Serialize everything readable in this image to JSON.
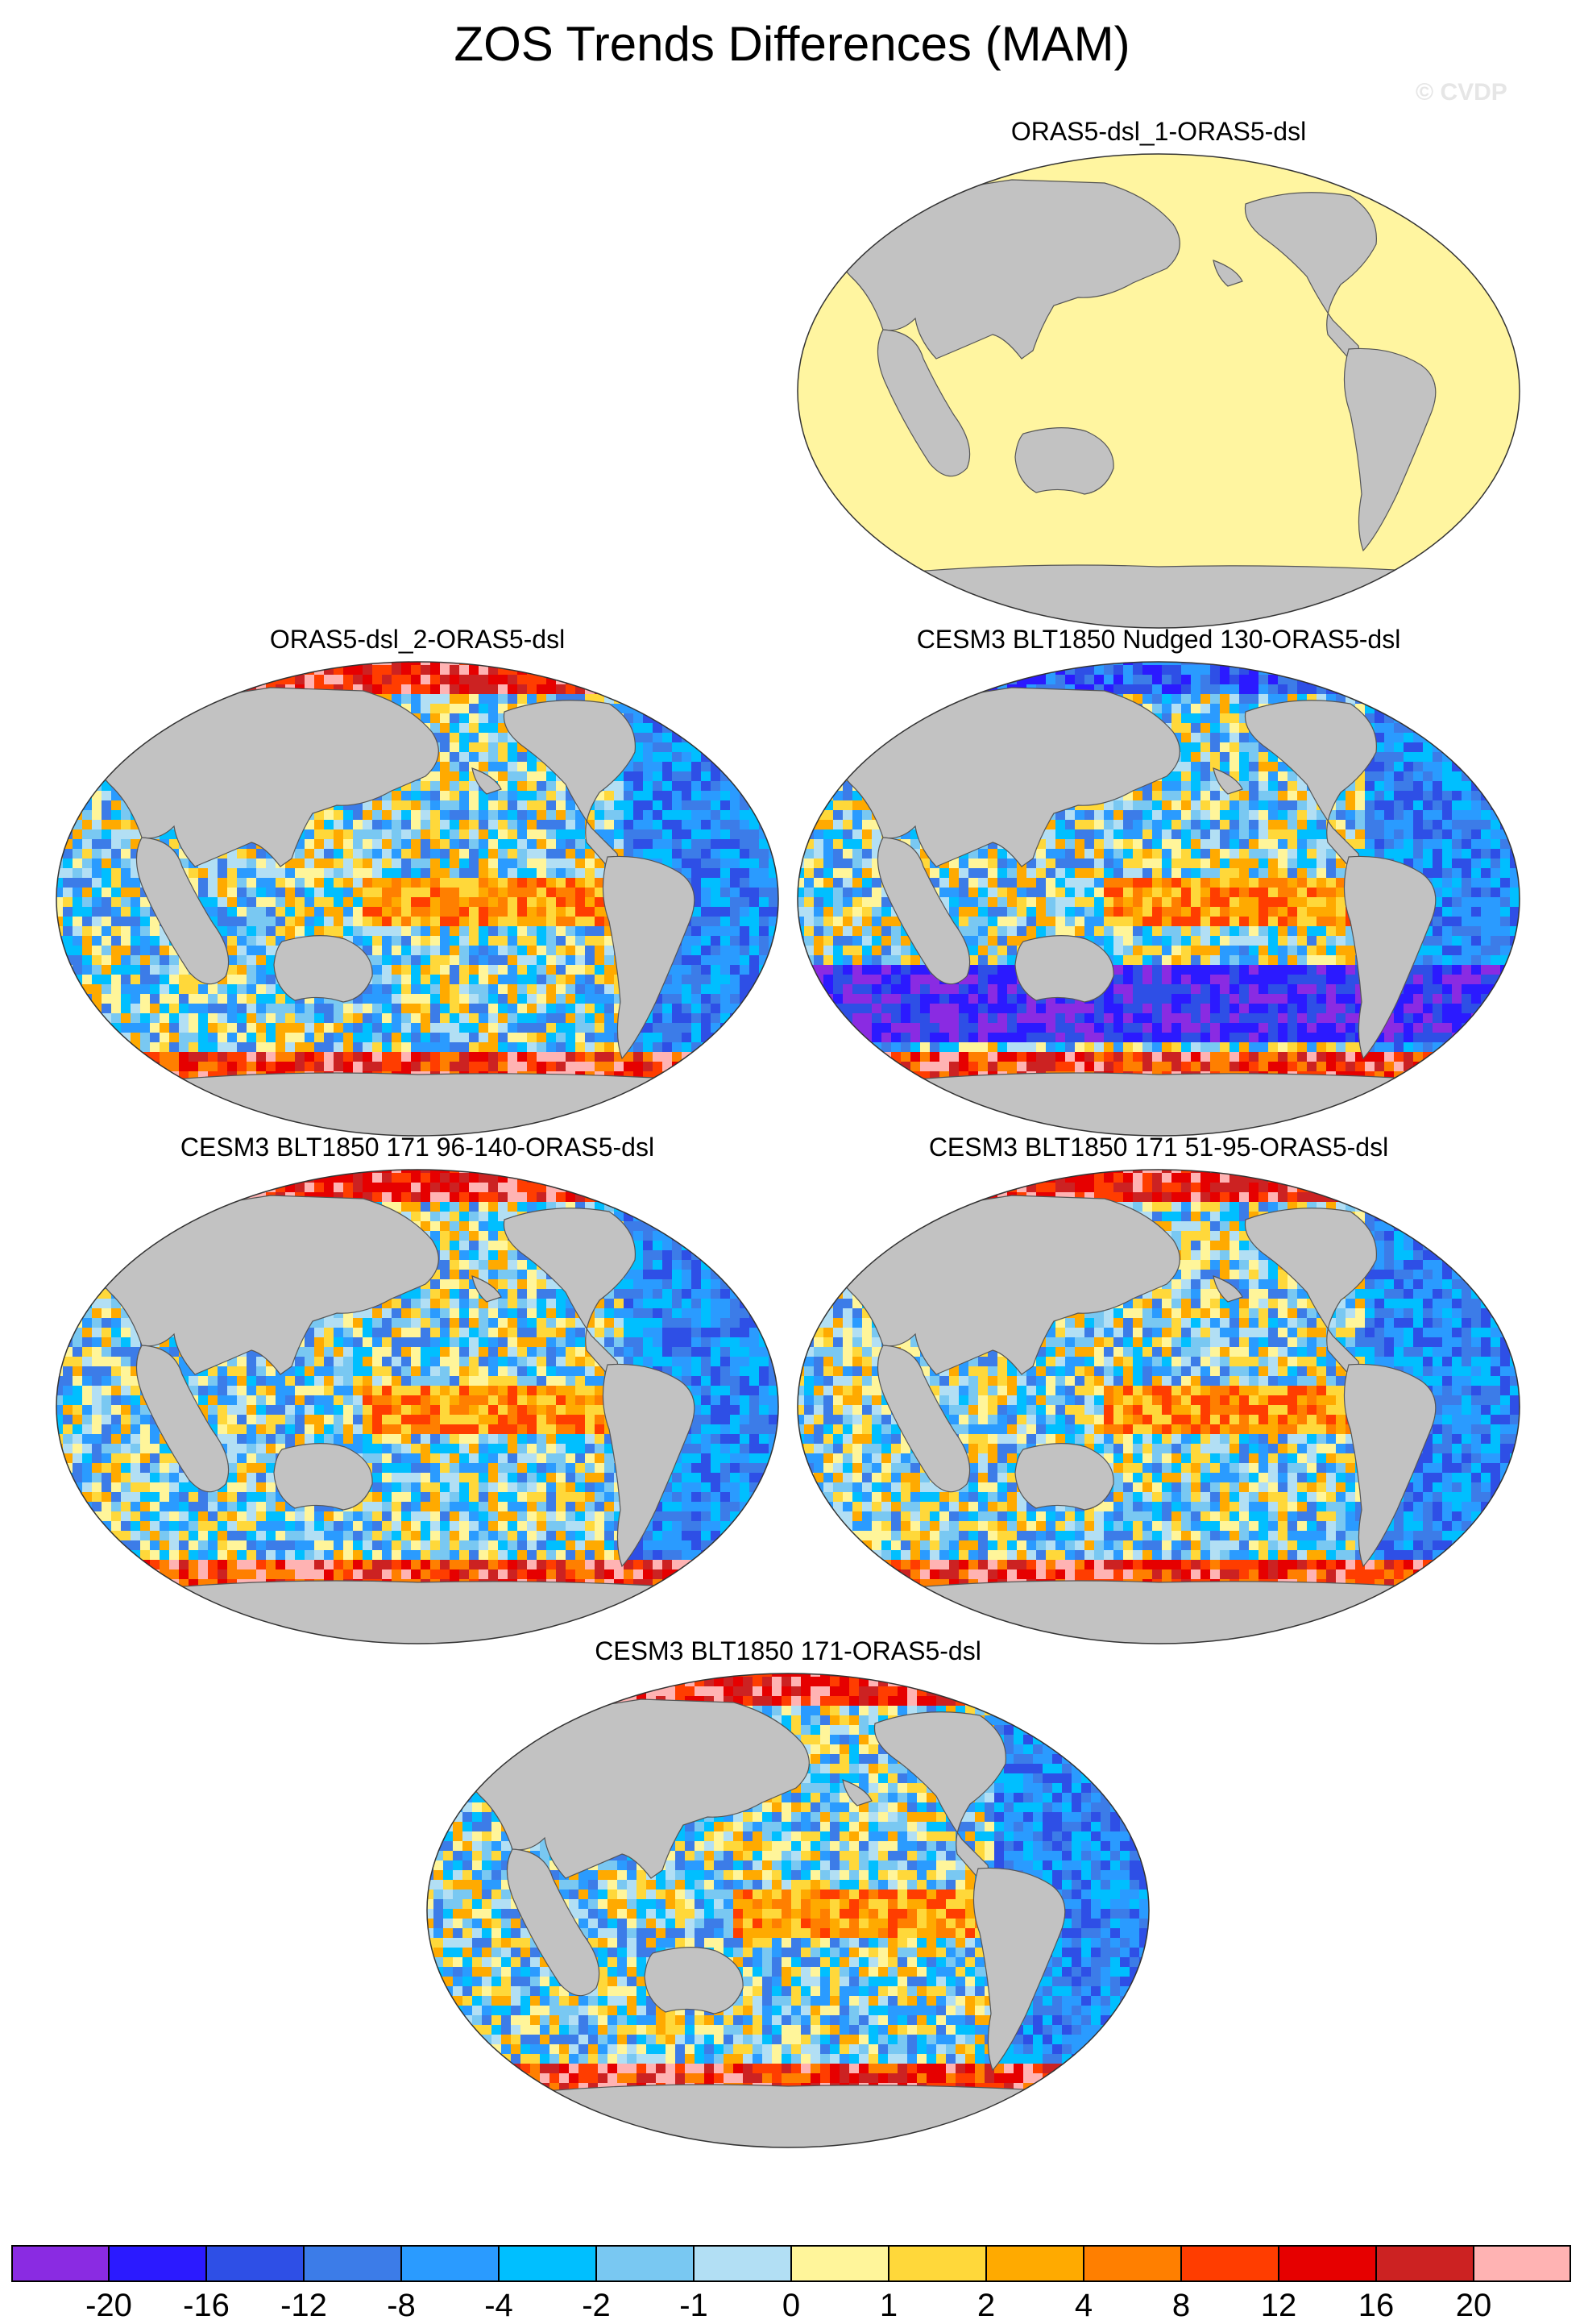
{
  "title": "ZOS Trends Differences (MAM)",
  "watermark": "© CVDP",
  "panels": [
    {
      "label": "ORAS5-dsl_1-ORAS5-dsl",
      "uniform_fill": "#fff5a0"
    },
    {
      "label": "ORAS5-dsl_2-ORAS5-dsl"
    },
    {
      "label": "CESM3 BLT1850 Nudged 130-ORAS5-dsl"
    },
    {
      "label": "CESM3 BLT1850 171 96-140-ORAS5-dsl"
    },
    {
      "label": "CESM3 BLT1850 171 51-95-ORAS5-dsl"
    },
    {
      "label": "CESM3 BLT1850 171-ORAS5-dsl"
    }
  ],
  "colorbar": {
    "colors": [
      "#8a2be2",
      "#2b1aff",
      "#2e4fe6",
      "#3c7ce8",
      "#2a9bff",
      "#00bfff",
      "#79c8f2",
      "#b2dff4",
      "#fff59a",
      "#ffd83a",
      "#ffaa00",
      "#ff7f00",
      "#ff3d00",
      "#e60000",
      "#cc2222",
      "#ffb3b3"
    ],
    "labels": [
      "-20",
      "-16",
      "-12",
      "-8",
      "-4",
      "-2",
      "-1",
      "0",
      "1",
      "2",
      "4",
      "8",
      "12",
      "16",
      "20"
    ]
  },
  "map_colors": {
    "land": "#c2c2c2",
    "outline": "#555555"
  }
}
